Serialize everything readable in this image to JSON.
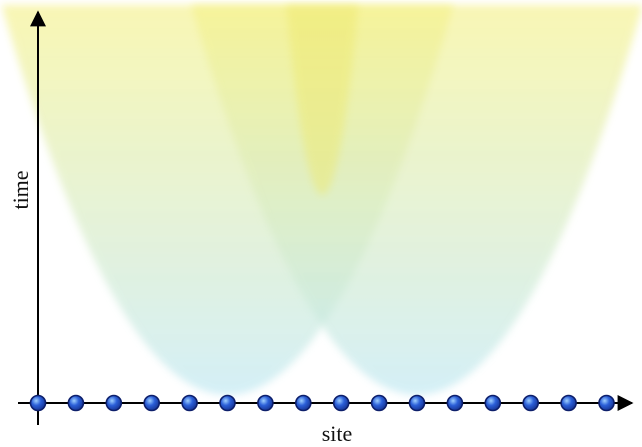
{
  "diagram": {
    "axes": {
      "vertical_label": "time",
      "horizontal_label": "site"
    },
    "site_count": 16,
    "cones": [
      {
        "name": "light-cone-left",
        "apex_site_index": 5
      },
      {
        "name": "light-cone-right",
        "apex_site_index": 10
      }
    ],
    "colors": {
      "cone_top": "#f5f18a",
      "cone_bottom": "#bfe8f3",
      "overlap": "#ede86a",
      "site_fill": "#2b5fd8",
      "site_stroke": "#0d1f6b",
      "axis": "#000000"
    }
  }
}
